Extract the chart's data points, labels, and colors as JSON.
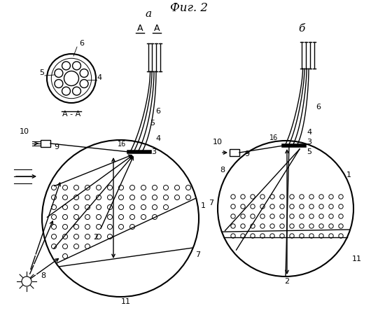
{
  "bg_color": "#ffffff",
  "line_color": "#000000",
  "title": "Фиг. 2",
  "label_a": "а",
  "label_b": "б",
  "fig_width": 5.4,
  "fig_height": 4.8,
  "dpi": 100
}
